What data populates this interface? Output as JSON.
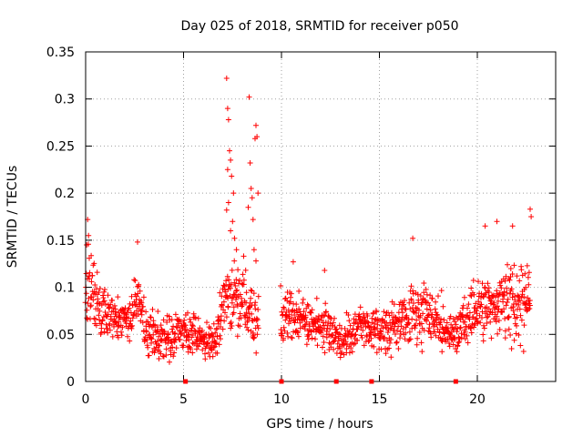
{
  "chart_data": {
    "type": "scatter",
    "title": "Day 025 of 2018, SRMTID for receiver p050",
    "xlabel": "GPS time / hours",
    "ylabel": "SRMTID / TECUs",
    "xlim": [
      0,
      24
    ],
    "ylim": [
      0,
      0.35
    ],
    "x_ticks": [
      0,
      5,
      10,
      15,
      20
    ],
    "x_tick_labels": [
      "0",
      "5",
      "10",
      "15",
      "20"
    ],
    "y_ticks": [
      0,
      0.05,
      0.1,
      0.15,
      0.2,
      0.25,
      0.3,
      0.35
    ],
    "y_tick_labels": [
      "0",
      "0.05",
      "0.1",
      "0.15",
      "0.2",
      "0.25",
      "0.3",
      "0.35"
    ],
    "grid": true,
    "marker": "+",
    "color": "#ff0000",
    "profile": [
      {
        "x": 0.0,
        "y": 0.085,
        "spread": 0.03
      },
      {
        "x": 0.3,
        "y": 0.1,
        "spread": 0.035
      },
      {
        "x": 0.8,
        "y": 0.07,
        "spread": 0.025
      },
      {
        "x": 1.5,
        "y": 0.07,
        "spread": 0.022
      },
      {
        "x": 2.2,
        "y": 0.065,
        "spread": 0.02
      },
      {
        "x": 2.7,
        "y": 0.09,
        "spread": 0.025
      },
      {
        "x": 3.0,
        "y": 0.055,
        "spread": 0.02
      },
      {
        "x": 4.0,
        "y": 0.045,
        "spread": 0.018
      },
      {
        "x": 5.0,
        "y": 0.055,
        "spread": 0.02
      },
      {
        "x": 5.5,
        "y": 0.05,
        "spread": 0.02
      },
      {
        "x": 6.0,
        "y": 0.045,
        "spread": 0.018
      },
      {
        "x": 6.6,
        "y": 0.04,
        "spread": 0.015
      },
      {
        "x": 7.0,
        "y": 0.08,
        "spread": 0.03
      },
      {
        "x": 7.4,
        "y": 0.1,
        "spread": 0.045
      },
      {
        "x": 8.0,
        "y": 0.08,
        "spread": 0.035
      },
      {
        "x": 8.8,
        "y": 0.06,
        "spread": 0.025
      },
      {
        "x": 10.0,
        "y": 0.06,
        "spread": 0.025
      },
      {
        "x": 10.5,
        "y": 0.075,
        "spread": 0.025
      },
      {
        "x": 11.5,
        "y": 0.06,
        "spread": 0.022
      },
      {
        "x": 12.5,
        "y": 0.055,
        "spread": 0.02
      },
      {
        "x": 13.0,
        "y": 0.04,
        "spread": 0.018
      },
      {
        "x": 14.0,
        "y": 0.06,
        "spread": 0.02
      },
      {
        "x": 15.0,
        "y": 0.055,
        "spread": 0.02
      },
      {
        "x": 16.0,
        "y": 0.06,
        "spread": 0.022
      },
      {
        "x": 16.7,
        "y": 0.075,
        "spread": 0.03
      },
      {
        "x": 17.5,
        "y": 0.07,
        "spread": 0.028
      },
      {
        "x": 18.5,
        "y": 0.055,
        "spread": 0.02
      },
      {
        "x": 19.0,
        "y": 0.05,
        "spread": 0.02
      },
      {
        "x": 19.5,
        "y": 0.07,
        "spread": 0.025
      },
      {
        "x": 20.5,
        "y": 0.08,
        "spread": 0.03
      },
      {
        "x": 21.0,
        "y": 0.085,
        "spread": 0.032
      },
      {
        "x": 22.0,
        "y": 0.085,
        "spread": 0.032
      },
      {
        "x": 22.7,
        "y": 0.09,
        "spread": 0.035
      }
    ],
    "gaps": [
      [
        8.85,
        9.95
      ]
    ],
    "highlight_points": [
      {
        "x": 0.1,
        "y": 0.172
      },
      {
        "x": 0.15,
        "y": 0.155
      },
      {
        "x": 0.05,
        "y": 0.145
      },
      {
        "x": 2.65,
        "y": 0.148
      },
      {
        "x": 7.2,
        "y": 0.322
      },
      {
        "x": 7.25,
        "y": 0.29
      },
      {
        "x": 7.3,
        "y": 0.278
      },
      {
        "x": 7.35,
        "y": 0.245
      },
      {
        "x": 7.4,
        "y": 0.235
      },
      {
        "x": 7.25,
        "y": 0.225
      },
      {
        "x": 7.45,
        "y": 0.218
      },
      {
        "x": 7.3,
        "y": 0.19
      },
      {
        "x": 7.5,
        "y": 0.17
      },
      {
        "x": 7.2,
        "y": 0.182
      },
      {
        "x": 7.4,
        "y": 0.16
      },
      {
        "x": 7.6,
        "y": 0.152
      },
      {
        "x": 7.7,
        "y": 0.14
      },
      {
        "x": 7.55,
        "y": 0.2
      },
      {
        "x": 8.35,
        "y": 0.302
      },
      {
        "x": 8.4,
        "y": 0.232
      },
      {
        "x": 8.45,
        "y": 0.205
      },
      {
        "x": 8.5,
        "y": 0.195
      },
      {
        "x": 8.3,
        "y": 0.185
      },
      {
        "x": 8.55,
        "y": 0.172
      },
      {
        "x": 8.7,
        "y": 0.272
      },
      {
        "x": 8.75,
        "y": 0.26
      },
      {
        "x": 8.65,
        "y": 0.258
      },
      {
        "x": 8.8,
        "y": 0.2
      },
      {
        "x": 8.6,
        "y": 0.14
      },
      {
        "x": 8.7,
        "y": 0.128
      },
      {
        "x": 21.0,
        "y": 0.17
      },
      {
        "x": 20.4,
        "y": 0.165
      },
      {
        "x": 21.8,
        "y": 0.165
      },
      {
        "x": 22.7,
        "y": 0.183
      },
      {
        "x": 22.75,
        "y": 0.175
      },
      {
        "x": 16.7,
        "y": 0.152
      },
      {
        "x": 10.6,
        "y": 0.127
      },
      {
        "x": 12.2,
        "y": 0.118
      }
    ],
    "axis_markers_x": [
      5.1,
      10.0,
      12.8,
      14.6,
      18.9
    ]
  }
}
